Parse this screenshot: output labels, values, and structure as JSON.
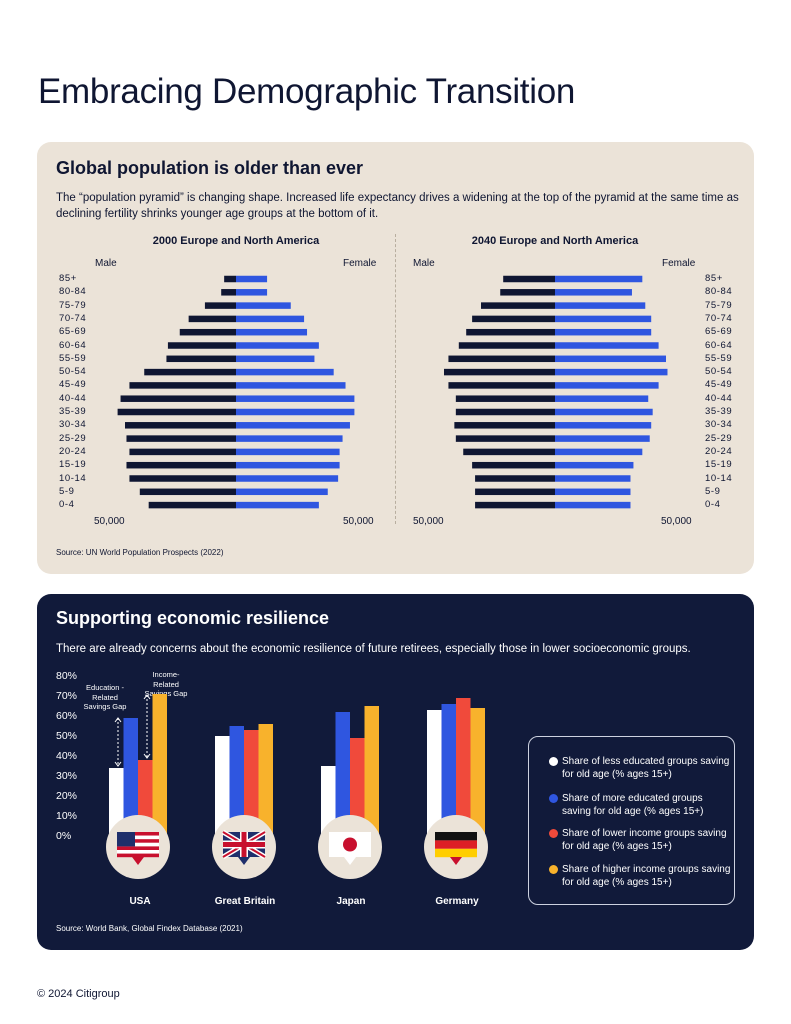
{
  "title": "Embracing Demographic Transition",
  "panel1": {
    "heading": "Global population is older than ever",
    "description": "The “population pyramid” is changing shape. Increased life expectancy drives a widening at the top of the pyramid at the same time as declining fertility shrinks younger age groups at the bottom of it.",
    "source": "Source: UN World Population Prospects (2022)"
  },
  "panel2": {
    "heading": "Supporting economic resilience",
    "description": "There are already concerns about the economic resilience of future retirees, especially those in lower socioeconomic groups.",
    "source": "Source: World Bank, Global Findex Database (2021)",
    "education_gap_label": "Education -Related Savings Gap",
    "income_gap_label": "Income- Related Savings Gap",
    "flag_icons": [
      "us-flag-icon",
      "uk-flag-icon",
      "japan-flag-icon",
      "germany-flag-icon"
    ]
  },
  "footer": "© 2024 Citigroup",
  "colors": {
    "navy": "#0f1632",
    "blue": "#2f56e0",
    "red": "#f04a3b",
    "yellow": "#f8b22c",
    "beige": "#ebe3d8"
  },
  "chart_data": [
    {
      "type": "bar",
      "title": "2000 Europe and North America",
      "orientation": "horizontal-pyramid",
      "male_label": "Male",
      "female_label": "Female",
      "tick_label": "50,000",
      "categories": [
        "85+",
        "80-84",
        "75-79",
        "70-74",
        "65-69",
        "60-64",
        "55-59",
        "50-54",
        "45-49",
        "40-44",
        "35-39",
        "30-34",
        "25-29",
        "20-24",
        "15-19",
        "10-14",
        "5-9",
        "0-4"
      ],
      "series": [
        {
          "name": "Male",
          "values": [
            8000,
            10000,
            21000,
            32000,
            38000,
            46000,
            47000,
            62000,
            72000,
            78000,
            80000,
            75000,
            74000,
            72000,
            74000,
            72000,
            65000,
            59000
          ]
        },
        {
          "name": "Female",
          "values": [
            21000,
            21000,
            37000,
            46000,
            48000,
            56000,
            53000,
            66000,
            74000,
            80000,
            80000,
            77000,
            72000,
            70000,
            70000,
            69000,
            62000,
            56000
          ]
        }
      ],
      "xlim": [
        -90000,
        90000
      ]
    },
    {
      "type": "bar",
      "title": "2040 Europe and North America",
      "orientation": "horizontal-pyramid",
      "male_label": "Male",
      "female_label": "Female",
      "tick_label": "50,000",
      "categories": [
        "85+",
        "80-84",
        "75-79",
        "70-74",
        "65-69",
        "60-64",
        "55-59",
        "50-54",
        "45-49",
        "40-44",
        "35-39",
        "30-34",
        "25-29",
        "20-24",
        "15-19",
        "10-14",
        "5-9",
        "0-4"
      ],
      "series": [
        {
          "name": "Male",
          "values": [
            35000,
            37000,
            50000,
            56000,
            60000,
            65000,
            72000,
            75000,
            72000,
            67000,
            67000,
            68000,
            67000,
            62000,
            56000,
            54000,
            54000,
            54000
          ]
        },
        {
          "name": "Female",
          "values": [
            59000,
            52000,
            61000,
            65000,
            65000,
            70000,
            75000,
            76000,
            70000,
            63000,
            66000,
            65000,
            64000,
            59000,
            53000,
            51000,
            51000,
            51000
          ]
        }
      ],
      "xlim": [
        -90000,
        90000
      ]
    },
    {
      "type": "bar",
      "categories": [
        "USA",
        "Great Britain",
        "Japan",
        "Germany"
      ],
      "ylim": [
        0,
        80
      ],
      "yticks": [
        "80%",
        "70%",
        "60%",
        "50%",
        "40%",
        "30%",
        "20%",
        "10%",
        "0%"
      ],
      "series": [
        {
          "name": "Share of less educated groups saving for old age (% ages 15+)",
          "color": "#ffffff",
          "values": [
            35,
            51,
            36,
            64
          ]
        },
        {
          "name": "Share of more educated groups saving for old age (% ages 15+)",
          "color": "#2f56e0",
          "values": [
            60,
            56,
            63,
            67
          ]
        },
        {
          "name": "Share of lower income groups saving for old age (% ages 15+)",
          "color": "#f04a3b",
          "values": [
            39,
            54,
            50,
            70
          ]
        },
        {
          "name": "Share of higher income groups saving for old age (% ages 15+)",
          "color": "#f8b22c",
          "values": [
            72,
            57,
            66,
            65
          ]
        }
      ],
      "legend": "right"
    }
  ]
}
